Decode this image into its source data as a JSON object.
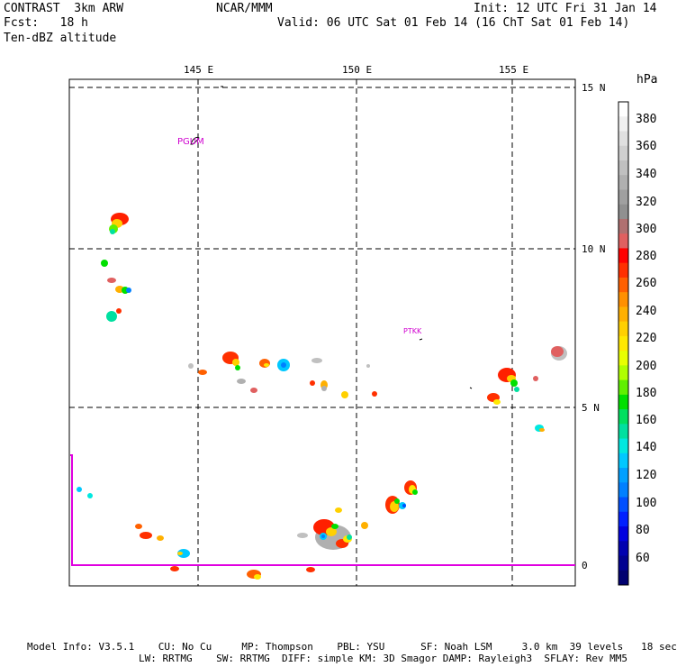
{
  "header": {
    "model": "CONTRAST  3km ARW",
    "org": "NCAR/MMM",
    "init": "Init: 12 UTC Fri 31 Jan 14",
    "fcst": "Fcst:   18 h",
    "valid": "Valid: 06 UTC Sat 01 Feb 14 (16 ChT Sat 01 Feb 14)",
    "field": "Ten-dBZ altitude"
  },
  "axes": {
    "lon_labels": [
      "145 E",
      "150 E",
      "155 E"
    ],
    "lat_labels": [
      "15 N",
      "10 N",
      "5 N",
      "0"
    ]
  },
  "stations": [
    {
      "id": "PGUM"
    },
    {
      "id": "PTKK"
    }
  ],
  "colorbar": {
    "unit": "hPa",
    "labels": [
      "380",
      "360",
      "340",
      "320",
      "300",
      "280",
      "260",
      "240",
      "220",
      "200",
      "180",
      "160",
      "140",
      "120",
      "100",
      "80",
      "60"
    ],
    "colors": [
      "#ffffff",
      "#f0f0f0",
      "#e0e0e0",
      "#d0d0d0",
      "#c0c0c0",
      "#b0b0b0",
      "#a0a0a0",
      "#909090",
      "#b07070",
      "#e06060",
      "#ff0000",
      "#ff3000",
      "#ff6000",
      "#ff9000",
      "#ffb000",
      "#ffd000",
      "#ffe800",
      "#e8ff00",
      "#b0ff00",
      "#60f000",
      "#00e000",
      "#00e060",
      "#00e0a0",
      "#00e8e0",
      "#00c8ff",
      "#00a0ff",
      "#0080ff",
      "#0050ff",
      "#0020ff",
      "#0000e0",
      "#0000b0",
      "#000090",
      "#000070"
    ]
  },
  "footer": {
    "line1": "Model Info: V3.5.1    CU: No Cu     MP: Thompson    PBL: YSU      SF: Noah LSM     3.0 km  39 levels   18 sec",
    "line2": "LW: RRTMG    SW: RRTMG  DIFF: simple KM: 3D Smagor DAMP: Rayleigh3  SFLAY: Rev MM5"
  }
}
